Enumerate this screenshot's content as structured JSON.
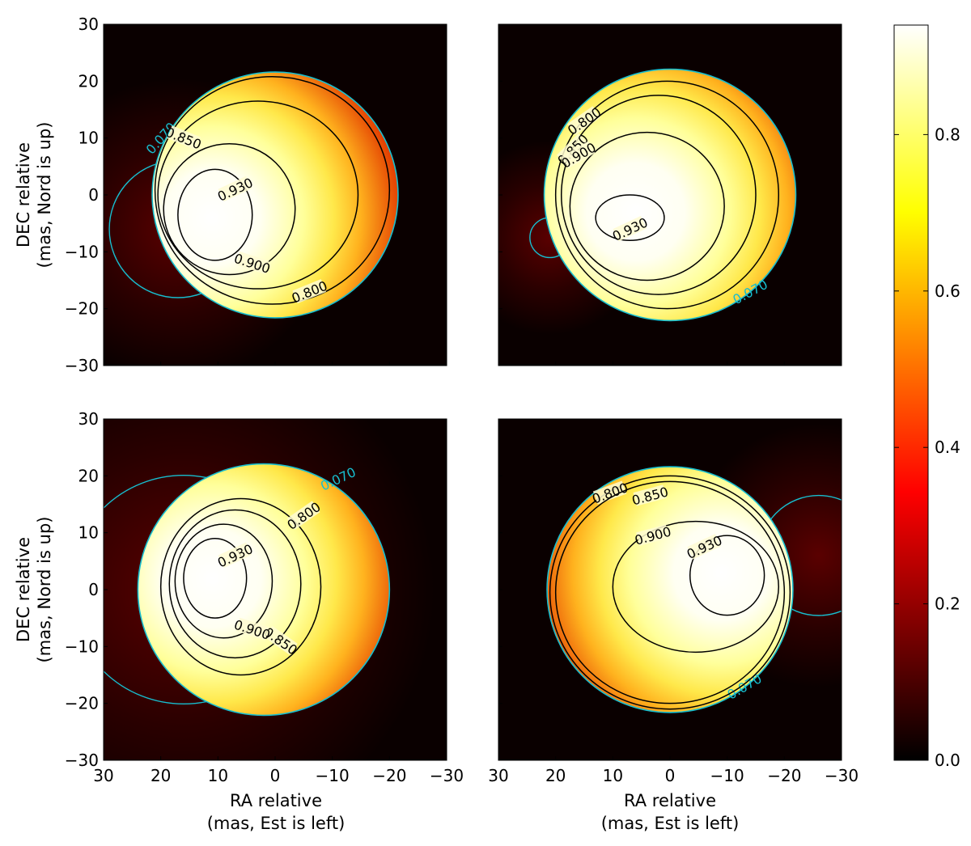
{
  "chart_data": {
    "type": "heatmap",
    "layout": "2x2 grid",
    "colormap": "hot",
    "colorbar": {
      "min": 0.0,
      "max": 0.94,
      "ticks": [
        0.0,
        0.2,
        0.4,
        0.6,
        0.8
      ],
      "tick_labels": [
        "0.0",
        "0.2",
        "0.4",
        "0.6",
        "0.8"
      ]
    },
    "axes": {
      "xlim": [
        30,
        -30
      ],
      "ylim": [
        -30,
        30
      ],
      "xticks": [
        30,
        20,
        10,
        0,
        -10,
        -20,
        -30
      ],
      "xtick_labels": [
        "30",
        "20",
        "10",
        "0",
        "−10",
        "−20",
        "−30"
      ],
      "yticks": [
        30,
        20,
        10,
        0,
        -10,
        -20,
        -30
      ],
      "ytick_labels": [
        "30",
        "20",
        "10",
        "0",
        "−10",
        "−20",
        "−30"
      ],
      "xlabel": "RA relative",
      "xlabel2": "(mas, Est is left)",
      "ylabel": "DEC relative",
      "ylabel2": "(mas, Nord is up)"
    },
    "panels": [
      {
        "id": "top-left",
        "disk": {
          "center": [
            0,
            0
          ],
          "radius": 21.5
        },
        "companion": {
          "center": [
            17,
            -6
          ],
          "radius": 12
        },
        "bright_spot": [
          11,
          -4
        ],
        "contours": [
          {
            "level": 0.07,
            "label": "0.070",
            "color": "#17becf",
            "label_pos": [
              20,
              10
            ],
            "label_angle": -48
          },
          {
            "level": 0.8,
            "label": "0.800",
            "rx": 20.5,
            "ry": 20.0,
            "cx": 0.5,
            "cy": 0.8,
            "label_pos": [
              -6,
              -17
            ],
            "label_angle": -22
          },
          {
            "level": 0.85,
            "label": "0.850",
            "rx": 17.5,
            "ry": 16.5,
            "cx": 3,
            "cy": 0,
            "label_pos": [
              16,
              10
            ],
            "label_angle": 22
          },
          {
            "level": 0.9,
            "label": "0.900",
            "rx": 11.5,
            "ry": 11.5,
            "cx": 8,
            "cy": -2.5,
            "label_pos": [
              4,
              -12
            ],
            "label_angle": 18
          },
          {
            "level": 0.93,
            "label": "0.930",
            "rx": 6.5,
            "ry": 8.0,
            "cx": 10.5,
            "cy": -3.5,
            "label_pos": [
              7,
              1
            ],
            "label_angle": -25
          }
        ]
      },
      {
        "id": "top-right",
        "disk": {
          "center": [
            0,
            0
          ],
          "radius": 22
        },
        "companion": {
          "center": [
            21,
            -7.5
          ],
          "radius": 3.5
        },
        "bright_spot": [
          6,
          -3
        ],
        "contours": [
          {
            "level": 0.07,
            "label": "0.070",
            "color": "#17becf",
            "label_pos": [
              -14,
              -17
            ],
            "label_angle": -28
          },
          {
            "level": 0.8,
            "label": "0.800",
            "rx": 19.5,
            "ry": 20.0,
            "cx": 0.5,
            "cy": 0.0,
            "label_pos": [
              15,
              13
            ],
            "label_angle": -35
          },
          {
            "level": 0.85,
            "label": "0.850",
            "rx": 17.0,
            "ry": 17.5,
            "cx": 2,
            "cy": 0,
            "label_pos": [
              17,
              8
            ],
            "label_angle": -45
          },
          {
            "level": 0.9,
            "label": "0.900",
            "rx": 13.5,
            "ry": 13.0,
            "cx": 4,
            "cy": -2,
            "label_pos": [
              16,
              7
            ],
            "label_angle": -30
          },
          {
            "level": 0.93,
            "label": "0.930",
            "rx": 6.0,
            "ry": 4.0,
            "cx": 7,
            "cy": -4,
            "label_pos": [
              7,
              -6
            ],
            "label_angle": -25
          }
        ]
      },
      {
        "id": "bottom-left",
        "disk": {
          "center": [
            2,
            0
          ],
          "radius": 22
        },
        "companion": {
          "center": [
            16,
            0
          ],
          "radius": 20
        },
        "bright_spot": [
          11,
          2
        ],
        "contours": [
          {
            "level": 0.07,
            "label": "0.070",
            "color": "#17becf",
            "label_pos": [
              -11,
              19.5
            ],
            "label_angle": -25
          },
          {
            "level": 0.8,
            "label": "0.800",
            "rx": 14.0,
            "ry": 15.5,
            "cx": 6,
            "cy": 0.5,
            "label_pos": [
              -5,
              13
            ],
            "label_angle": -35
          },
          {
            "level": 0.85,
            "label": "0.850",
            "rx": 11.5,
            "ry": 13.0,
            "cx": 7,
            "cy": 1,
            "label_pos": [
              -1,
              -9
            ],
            "label_angle": 35
          },
          {
            "level": 0.9,
            "label": "0.900",
            "rx": 8.5,
            "ry": 10.0,
            "cx": 9,
            "cy": 1.5,
            "label_pos": [
              4,
              -7
            ],
            "label_angle": 18
          },
          {
            "level": 0.93,
            "label": "0.930",
            "rx": 5.5,
            "ry": 7.0,
            "cx": 10.5,
            "cy": 2,
            "label_pos": [
              7,
              6
            ],
            "label_angle": -25
          }
        ]
      },
      {
        "id": "bottom-right",
        "disk": {
          "center": [
            0,
            0
          ],
          "radius": 21.5
        },
        "companion": {
          "center": [
            -26,
            6
          ],
          "radius": 10.5
        },
        "bright_spot": [
          -9,
          3
        ],
        "contours": [
          {
            "level": 0.07,
            "label": "0.070",
            "color": "#17becf",
            "label_pos": [
              -13,
              -17
            ],
            "label_angle": -30
          },
          {
            "level": 0.8,
            "label": "0.800",
            "rx": 21.0,
            "ry": 20.5,
            "cx": 0,
            "cy": -0.5,
            "label_pos": [
              10.5,
              17
            ],
            "label_angle": -20
          },
          {
            "level": 0.85,
            "label": "0.850",
            "rx": 20.0,
            "ry": 19.5,
            "cx": 0,
            "cy": -0.5,
            "label_pos": [
              3.5,
              16.5
            ],
            "label_angle": -15
          },
          {
            "level": 0.9,
            "label": "0.900",
            "rx": 14.5,
            "ry": 11.5,
            "cx": -4.5,
            "cy": 0.5,
            "label_pos": [
              3,
              9.5
            ],
            "label_angle": -15
          },
          {
            "level": 0.93,
            "label": "0.930",
            "rx": 6.5,
            "ry": 7.0,
            "cx": -10,
            "cy": 2.5,
            "label_pos": [
              -6,
              7.5
            ],
            "label_angle": -25
          }
        ]
      }
    ]
  }
}
